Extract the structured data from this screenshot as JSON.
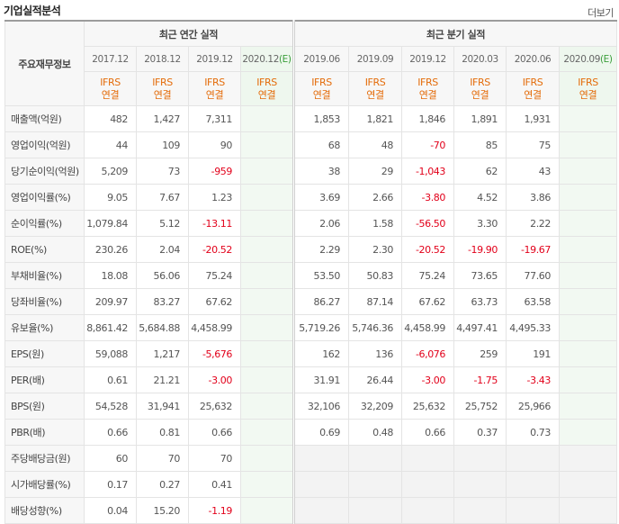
{
  "header": {
    "title": "기업실적분석",
    "more": "더보기"
  },
  "table": {
    "label_header": "주요재무정보",
    "annual_header": "최근 연간 실적",
    "quarterly_header": "최근 분기 실적",
    "annual_periods": [
      {
        "date": "2017.12",
        "standard": "IFRS",
        "scope": "연결"
      },
      {
        "date": "2018.12",
        "standard": "IFRS",
        "scope": "연결"
      },
      {
        "date": "2019.12",
        "standard": "IFRS",
        "scope": "연결"
      },
      {
        "date": "2020.12",
        "mark": "(E)",
        "standard": "IFRS",
        "scope": "연결"
      }
    ],
    "quarterly_periods": [
      {
        "date": "2019.06",
        "standard": "IFRS",
        "scope": "연결"
      },
      {
        "date": "2019.09",
        "standard": "IFRS",
        "scope": "연결"
      },
      {
        "date": "2019.12",
        "standard": "IFRS",
        "scope": "연결"
      },
      {
        "date": "2020.03",
        "standard": "IFRS",
        "scope": "연결"
      },
      {
        "date": "2020.06",
        "standard": "IFRS",
        "scope": "연결"
      },
      {
        "date": "2020.09",
        "mark": "(E)",
        "standard": "IFRS",
        "scope": "연결"
      }
    ],
    "rows": [
      {
        "label": "매출액(억원)",
        "annual": [
          "482",
          "1,427",
          "7,311",
          null
        ],
        "quarterly": [
          "1,853",
          "1,821",
          "1,846",
          "1,891",
          "1,931",
          null
        ]
      },
      {
        "label": "영업이익(억원)",
        "annual": [
          "44",
          "109",
          "90",
          null
        ],
        "quarterly": [
          "68",
          "48",
          "-70",
          "85",
          "75",
          null
        ]
      },
      {
        "label": "당기순이익(억원)",
        "annual": [
          "5,209",
          "73",
          "-959",
          null
        ],
        "quarterly": [
          "38",
          "29",
          "-1,043",
          "62",
          "43",
          null
        ]
      },
      {
        "label": "영업이익률(%)",
        "annual": [
          "9.05",
          "7.67",
          "1.23",
          null
        ],
        "quarterly": [
          "3.69",
          "2.66",
          "-3.80",
          "4.52",
          "3.86",
          null
        ]
      },
      {
        "label": "순이익률(%)",
        "annual": [
          "1,079.84",
          "5.12",
          "-13.11",
          null
        ],
        "quarterly": [
          "2.06",
          "1.58",
          "-56.50",
          "3.30",
          "2.22",
          null
        ]
      },
      {
        "label": "ROE(%)",
        "annual": [
          "230.26",
          "2.04",
          "-20.52",
          null
        ],
        "quarterly": [
          "2.29",
          "2.30",
          "-20.52",
          "-19.90",
          "-19.67",
          null
        ]
      },
      {
        "label": "부채비율(%)",
        "annual": [
          "18.08",
          "56.06",
          "75.24",
          null
        ],
        "quarterly": [
          "53.50",
          "50.83",
          "75.24",
          "73.65",
          "77.60",
          null
        ]
      },
      {
        "label": "당좌비율(%)",
        "annual": [
          "209.97",
          "83.27",
          "67.62",
          null
        ],
        "quarterly": [
          "86.27",
          "87.14",
          "67.62",
          "63.73",
          "63.58",
          null
        ]
      },
      {
        "label": "유보율(%)",
        "annual": [
          "8,861.42",
          "5,684.88",
          "4,458.99",
          null
        ],
        "quarterly": [
          "5,719.26",
          "5,746.36",
          "4,458.99",
          "4,497.41",
          "4,495.33",
          null
        ]
      },
      {
        "label": "EPS(원)",
        "annual": [
          "59,088",
          "1,217",
          "-5,676",
          null
        ],
        "quarterly": [
          "162",
          "136",
          "-6,076",
          "259",
          "191",
          null
        ]
      },
      {
        "label": "PER(배)",
        "annual": [
          "0.61",
          "21.21",
          "-3.00",
          null
        ],
        "quarterly": [
          "31.91",
          "26.44",
          "-3.00",
          "-1.75",
          "-3.43",
          null
        ]
      },
      {
        "label": "BPS(원)",
        "annual": [
          "54,528",
          "31,941",
          "25,632",
          null
        ],
        "quarterly": [
          "32,106",
          "32,209",
          "25,632",
          "25,752",
          "25,966",
          null
        ]
      },
      {
        "label": "PBR(배)",
        "annual": [
          "0.66",
          "0.81",
          "0.66",
          null
        ],
        "quarterly": [
          "0.69",
          "0.48",
          "0.66",
          "0.37",
          "0.73",
          null
        ]
      },
      {
        "label": "주당배당금(원)",
        "annual": [
          "60",
          "70",
          "70",
          null
        ],
        "quarterly": [
          null,
          null,
          null,
          null,
          null,
          null
        ]
      },
      {
        "label": "시가배당률(%)",
        "annual": [
          "0.17",
          "0.27",
          "0.41",
          null
        ],
        "quarterly": [
          null,
          null,
          null,
          null,
          null,
          null
        ]
      },
      {
        "label": "배당성향(%)",
        "annual": [
          "0.04",
          "15.20",
          "-1.19",
          null
        ],
        "quarterly": [
          null,
          null,
          null,
          null,
          null,
          null
        ]
      }
    ]
  }
}
